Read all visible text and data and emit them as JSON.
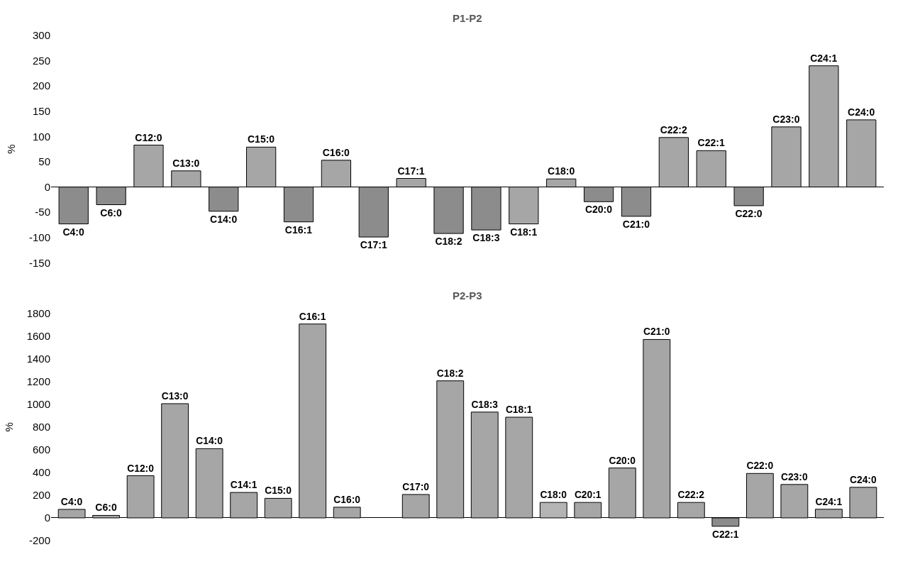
{
  "chart_data": [
    {
      "type": "bar",
      "title": "P1-P2",
      "ylabel": "%",
      "categories": [
        "C4:0",
        "C6:0",
        "C12:0",
        "C13:0",
        "C14:0",
        "C15:0",
        "C16:1",
        "C16:0",
        "C17:1",
        "C17:1",
        "C18:2",
        "C18:3",
        "C18:1",
        "C18:0",
        "C20:0",
        "C21:0",
        "C22:2",
        "C22:1",
        "C22:0",
        "C23:0",
        "C24:1",
        "C24:0"
      ],
      "values": [
        -73,
        -35,
        83,
        32,
        -48,
        79,
        -69,
        53,
        -99,
        17,
        -92,
        -85,
        -73,
        16,
        -29,
        -58,
        98,
        72,
        -37,
        119,
        240,
        133
      ],
      "colors": [
        "#8c8c8c",
        "#8c8c8c",
        "#a6a6a6",
        "#a6a6a6",
        "#8c8c8c",
        "#a6a6a6",
        "#8c8c8c",
        "#a6a6a6",
        "#8c8c8c",
        "#a6a6a6",
        "#8c8c8c",
        "#8c8c8c",
        "#a6a6a6",
        "#a6a6a6",
        "#8c8c8c",
        "#8c8c8c",
        "#a6a6a6",
        "#a6a6a6",
        "#8c8c8c",
        "#a6a6a6",
        "#a6a6a6",
        "#a6a6a6"
      ],
      "ylim": [
        -150,
        300
      ],
      "yticks": [
        -150,
        -100,
        -50,
        0,
        50,
        100,
        150,
        200,
        250,
        300
      ],
      "tick_labels": "y"
    },
    {
      "type": "bar",
      "title": "P2-P3",
      "ylabel": "%",
      "categories": [
        "C4:0",
        "C6:0",
        "C12:0",
        "C13:0",
        "C14:0",
        "C14:1",
        "C15:0",
        "C16:1",
        "C16:0",
        null,
        "C17:0",
        "C18:2",
        "C18:3",
        "C18:1",
        "C18:0",
        "C20:1",
        "C20:0",
        "C21:0",
        "C22:2",
        "C22:1",
        "C22:0",
        "C23:0",
        "C24:1",
        "C24:0"
      ],
      "values": [
        75,
        22,
        371,
        1005,
        609,
        224,
        172,
        1706,
        94,
        null,
        206,
        1206,
        931,
        886,
        136,
        136,
        439,
        1570,
        136,
        -74,
        391,
        294,
        76,
        269
      ],
      "colors": [
        "#a6a6a6",
        "#a6a6a6",
        "#a6a6a6",
        "#a6a6a6",
        "#a6a6a6",
        "#a6a6a6",
        "#a6a6a6",
        "#a6a6a6",
        "#a6a6a6",
        "#a6a6a6",
        "#a6a6a6",
        "#a6a6a6",
        "#a6a6a6",
        "#a6a6a6",
        "#b4b4b4",
        "#a6a6a6",
        "#a6a6a6",
        "#a6a6a6",
        "#a6a6a6",
        "#8c8c8c",
        "#a6a6a6",
        "#a6a6a6",
        "#a6a6a6",
        "#a6a6a6"
      ],
      "ylim": [
        -200,
        1800
      ],
      "yticks": [
        -200,
        0,
        200,
        400,
        600,
        800,
        1000,
        1200,
        1400,
        1600,
        1800
      ],
      "tick_labels": "y"
    }
  ]
}
